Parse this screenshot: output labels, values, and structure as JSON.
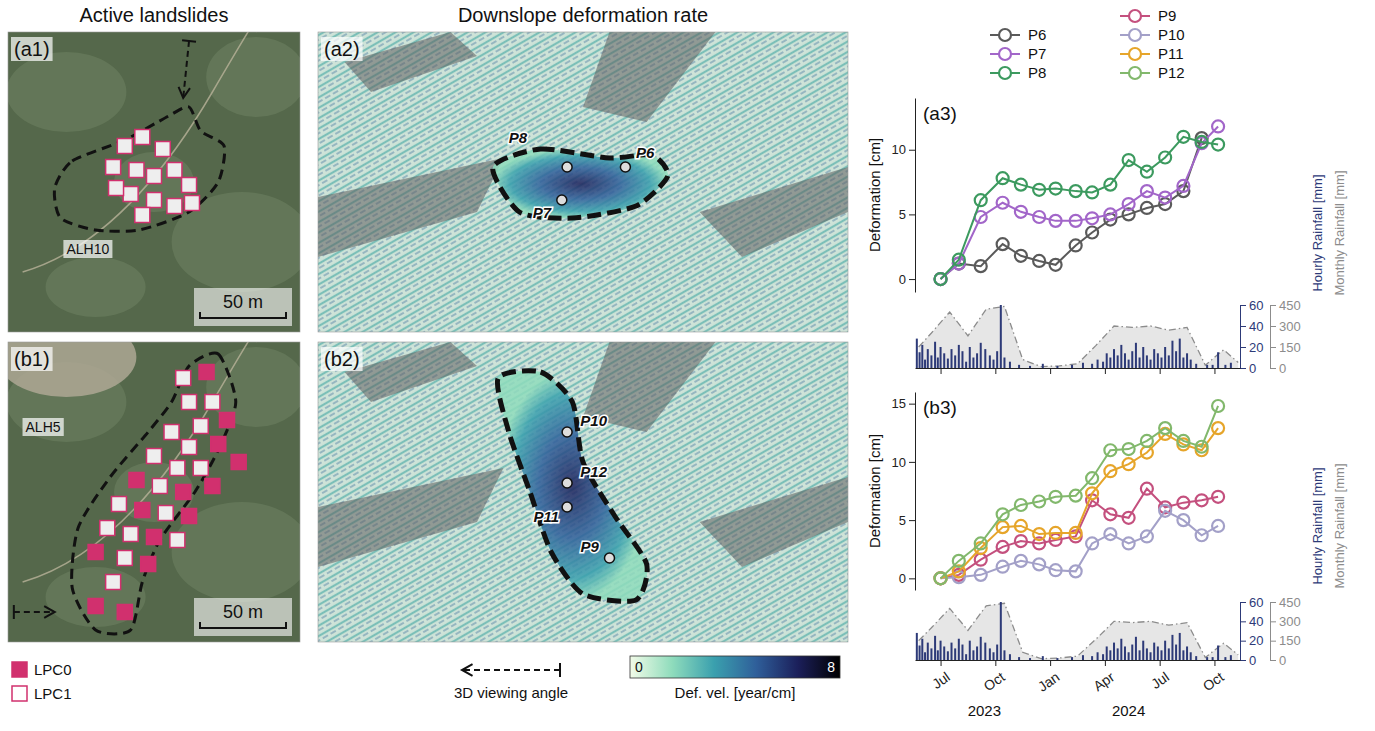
{
  "panels": {
    "column_titles": [
      "Active landslides",
      "Downslope deformation rate"
    ],
    "maps": [
      {
        "label": "(a1)",
        "landslide": "ALH10",
        "scale_bar": "50 m"
      },
      {
        "label": "(a2)",
        "points": [
          "P8",
          "P6",
          "P7"
        ]
      },
      {
        "label": "(b1)",
        "landslide": "ALH5",
        "scale_bar": "50 m"
      },
      {
        "label": "(b2)",
        "points": [
          "P10",
          "P12",
          "P11",
          "P9"
        ]
      }
    ],
    "map_legend": {
      "lpc": [
        {
          "name": "LPC0",
          "color": "#d1306e",
          "marker": "filled"
        },
        {
          "name": "LPC1",
          "color": "#d1306e",
          "marker": "open"
        }
      ],
      "view": "3D viewing angle"
    },
    "colorbar": {
      "title": "Def. vel. [year/cm]",
      "range": [
        0,
        8
      ],
      "ticks": [
        0,
        8
      ]
    }
  },
  "chart_data": [
    {
      "type": "line",
      "panel": "(a3)",
      "legend": "top",
      "marker": "circle",
      "tick_labels": "y",
      "x": [
        7.0,
        8.0,
        9.2,
        10.4,
        11.4,
        12.4,
        13.3,
        14.4,
        15.3,
        16.3,
        17.3,
        18.3,
        19.3,
        20.3,
        21.3,
        22.2
      ],
      "xlim": [
        5.6,
        23.4
      ],
      "xticks": [
        7,
        10,
        13,
        16,
        19,
        22
      ],
      "ylabel": "Deformation [cm]",
      "ylim": [
        -1,
        14
      ],
      "yticks": [
        0,
        5,
        10
      ],
      "y2label": "Hourly Rainfall [mm]",
      "y2lim": [
        0,
        60
      ],
      "y2ticks": [
        0,
        20,
        40,
        60
      ],
      "y3label": "Monthly Rainfall [mm]",
      "y3lim": [
        0,
        450
      ],
      "y3ticks": [
        0,
        150,
        300,
        450
      ],
      "series": [
        {
          "name": "P6",
          "color": "#5a5a5a",
          "values": [
            0,
            1.2,
            1.0,
            2.7,
            1.8,
            1.4,
            1.1,
            2.6,
            3.6,
            4.6,
            5.0,
            5.5,
            5.8,
            6.8,
            10.9,
            null
          ]
        },
        {
          "name": "P7",
          "color": "#a266c9",
          "values": [
            0,
            1.2,
            4.8,
            5.9,
            5.2,
            4.8,
            4.5,
            4.5,
            4.7,
            5.0,
            5.8,
            6.8,
            6.3,
            7.2,
            10.5,
            11.8
          ]
        },
        {
          "name": "P8",
          "color": "#3c9a5f",
          "values": [
            0,
            1.5,
            6.1,
            7.8,
            7.3,
            6.9,
            7.0,
            6.8,
            6.7,
            7.3,
            9.2,
            8.3,
            9.4,
            11.0,
            10.6,
            10.4
          ]
        }
      ],
      "rainfall_hourly": {
        "type": "bar",
        "axis": "y2",
        "color": "#2d3a78",
        "x": [
          5.7,
          5.85,
          6.0,
          6.15,
          6.3,
          6.5,
          6.7,
          6.85,
          7.0,
          7.2,
          7.4,
          7.6,
          7.8,
          8.0,
          8.2,
          8.4,
          8.6,
          8.8,
          9.0,
          9.2,
          9.45,
          9.7,
          9.9,
          10.1,
          10.3,
          10.5,
          10.8,
          11.3,
          11.9,
          12.6,
          13.4,
          14.2,
          14.8,
          15.3,
          15.6,
          15.9,
          16.1,
          16.3,
          16.5,
          16.7,
          16.9,
          17.1,
          17.3,
          17.5,
          17.7,
          17.9,
          18.1,
          18.3,
          18.5,
          18.7,
          18.9,
          19.1,
          19.3,
          19.5,
          19.7,
          19.9,
          20.1,
          20.3,
          20.5,
          20.7,
          21.0,
          21.6,
          21.9,
          22.2,
          22.6,
          22.9
        ],
        "values": [
          28,
          15,
          22,
          8,
          18,
          12,
          25,
          10,
          20,
          14,
          9,
          18,
          12,
          22,
          16,
          6,
          20,
          10,
          14,
          24,
          18,
          12,
          8,
          16,
          60,
          10,
          6,
          3,
          2,
          4,
          2,
          3,
          5,
          4,
          8,
          6,
          14,
          10,
          18,
          12,
          22,
          14,
          8,
          16,
          24,
          10,
          20,
          12,
          8,
          18,
          14,
          10,
          20,
          12,
          26,
          16,
          28,
          10,
          14,
          8,
          4,
          3,
          3,
          15,
          3,
          5
        ]
      },
      "rainfall_monthly": {
        "type": "area",
        "axis": "y3",
        "color": "#8c8c8c",
        "line_style": "dashdot",
        "x": [
          5.8,
          6.5,
          7.5,
          8.5,
          9.5,
          10.5,
          11.5,
          12.5,
          13.5,
          14.5,
          15.5,
          16.5,
          17.5,
          18.5,
          19.5,
          20.5,
          21.5,
          22.5,
          23.3
        ],
        "values": [
          150,
          250,
          400,
          230,
          420,
          440,
          60,
          10,
          15,
          30,
          160,
          300,
          290,
          300,
          270,
          290,
          20,
          130,
          40
        ]
      }
    },
    {
      "type": "line",
      "panel": "(b3)",
      "legend": "top",
      "marker": "circle",
      "x": [
        7.0,
        8.0,
        9.2,
        10.4,
        11.4,
        12.4,
        13.3,
        14.4,
        15.3,
        16.3,
        17.3,
        18.3,
        19.3,
        20.3,
        21.3,
        22.2
      ],
      "xlim": [
        5.6,
        23.4
      ],
      "xticks": [
        {
          "value": 7,
          "label": "Jul"
        },
        {
          "value": 10,
          "label": "Oct"
        },
        {
          "value": 13,
          "label": "Jan"
        },
        {
          "value": 16,
          "label": "Apr"
        },
        {
          "value": 19,
          "label": "Jul"
        },
        {
          "value": 22,
          "label": "Oct"
        }
      ],
      "x_year_labels": [
        {
          "value": 9.4,
          "label": "2023"
        },
        {
          "value": 17.3,
          "label": "2024"
        }
      ],
      "ylabel": "Deformation [cm]",
      "ylim": [
        -1,
        16
      ],
      "yticks": [
        0,
        5,
        10,
        15
      ],
      "y2label": "Hourly Rainfall [mm]",
      "y2lim": [
        0,
        60
      ],
      "y2ticks": [
        0,
        20,
        40,
        60
      ],
      "y3label": "Monthly Rainfall [mm]",
      "y3lim": [
        0,
        450
      ],
      "y3ticks": [
        0,
        150,
        300,
        450
      ],
      "series": [
        {
          "name": "P9",
          "color": "#c4507e",
          "values": [
            0,
            0.3,
            1.6,
            2.7,
            3.2,
            3.0,
            3.3,
            3.6,
            6.7,
            5.5,
            5.2,
            7.7,
            6.1,
            6.5,
            6.7,
            7.0
          ]
        },
        {
          "name": "P10",
          "color": "#a3a0c8",
          "values": [
            0,
            0.1,
            0.3,
            1.0,
            1.5,
            1.2,
            0.7,
            0.6,
            3.0,
            3.8,
            3.0,
            3.6,
            5.8,
            5.0,
            3.7,
            4.5
          ]
        },
        {
          "name": "P11",
          "color": "#e6a52a",
          "values": [
            0,
            0.6,
            2.6,
            4.4,
            4.5,
            3.8,
            3.9,
            3.9,
            7.3,
            9.2,
            9.8,
            10.8,
            12.4,
            11.5,
            11.0,
            12.9
          ]
        },
        {
          "name": "P12",
          "color": "#82b86c",
          "values": [
            0,
            1.5,
            3.0,
            5.5,
            6.3,
            6.6,
            7.0,
            7.1,
            8.6,
            11.0,
            11.1,
            11.8,
            12.9,
            11.8,
            11.3,
            14.8
          ]
        }
      ],
      "rainfall_hourly": {
        "type": "bar",
        "axis": "y2",
        "color": "#2d3a78",
        "x": [
          5.7,
          5.85,
          6.0,
          6.15,
          6.3,
          6.5,
          6.7,
          6.85,
          7.0,
          7.2,
          7.4,
          7.6,
          7.8,
          8.0,
          8.2,
          8.4,
          8.6,
          8.8,
          9.0,
          9.2,
          9.45,
          9.7,
          9.9,
          10.1,
          10.3,
          10.5,
          10.8,
          11.3,
          11.9,
          12.6,
          13.4,
          14.2,
          14.8,
          15.3,
          15.6,
          15.9,
          16.1,
          16.3,
          16.5,
          16.7,
          16.9,
          17.1,
          17.3,
          17.5,
          17.7,
          17.9,
          18.1,
          18.3,
          18.5,
          18.7,
          18.9,
          19.1,
          19.3,
          19.5,
          19.7,
          19.9,
          20.1,
          20.3,
          20.5,
          20.7,
          21.0,
          21.6,
          21.9,
          22.2,
          22.6,
          22.9
        ],
        "values": [
          28,
          15,
          22,
          8,
          18,
          12,
          25,
          10,
          20,
          14,
          9,
          18,
          12,
          22,
          16,
          6,
          20,
          10,
          14,
          24,
          18,
          12,
          8,
          16,
          60,
          10,
          6,
          3,
          2,
          4,
          2,
          3,
          5,
          4,
          8,
          6,
          14,
          10,
          18,
          12,
          22,
          14,
          8,
          16,
          24,
          10,
          20,
          12,
          8,
          18,
          14,
          10,
          20,
          12,
          26,
          16,
          28,
          10,
          14,
          8,
          4,
          3,
          3,
          15,
          3,
          5
        ]
      },
      "rainfall_monthly": {
        "type": "area",
        "axis": "y3",
        "color": "#8c8c8c",
        "line_style": "dashdot",
        "x": [
          5.8,
          6.5,
          7.5,
          8.5,
          9.5,
          10.5,
          11.5,
          12.5,
          13.5,
          14.5,
          15.5,
          16.5,
          17.5,
          18.5,
          19.5,
          20.5,
          21.5,
          22.5,
          23.3
        ],
        "values": [
          150,
          250,
          400,
          230,
          420,
          440,
          60,
          10,
          15,
          30,
          160,
          300,
          290,
          300,
          270,
          290,
          20,
          130,
          40
        ]
      }
    }
  ]
}
